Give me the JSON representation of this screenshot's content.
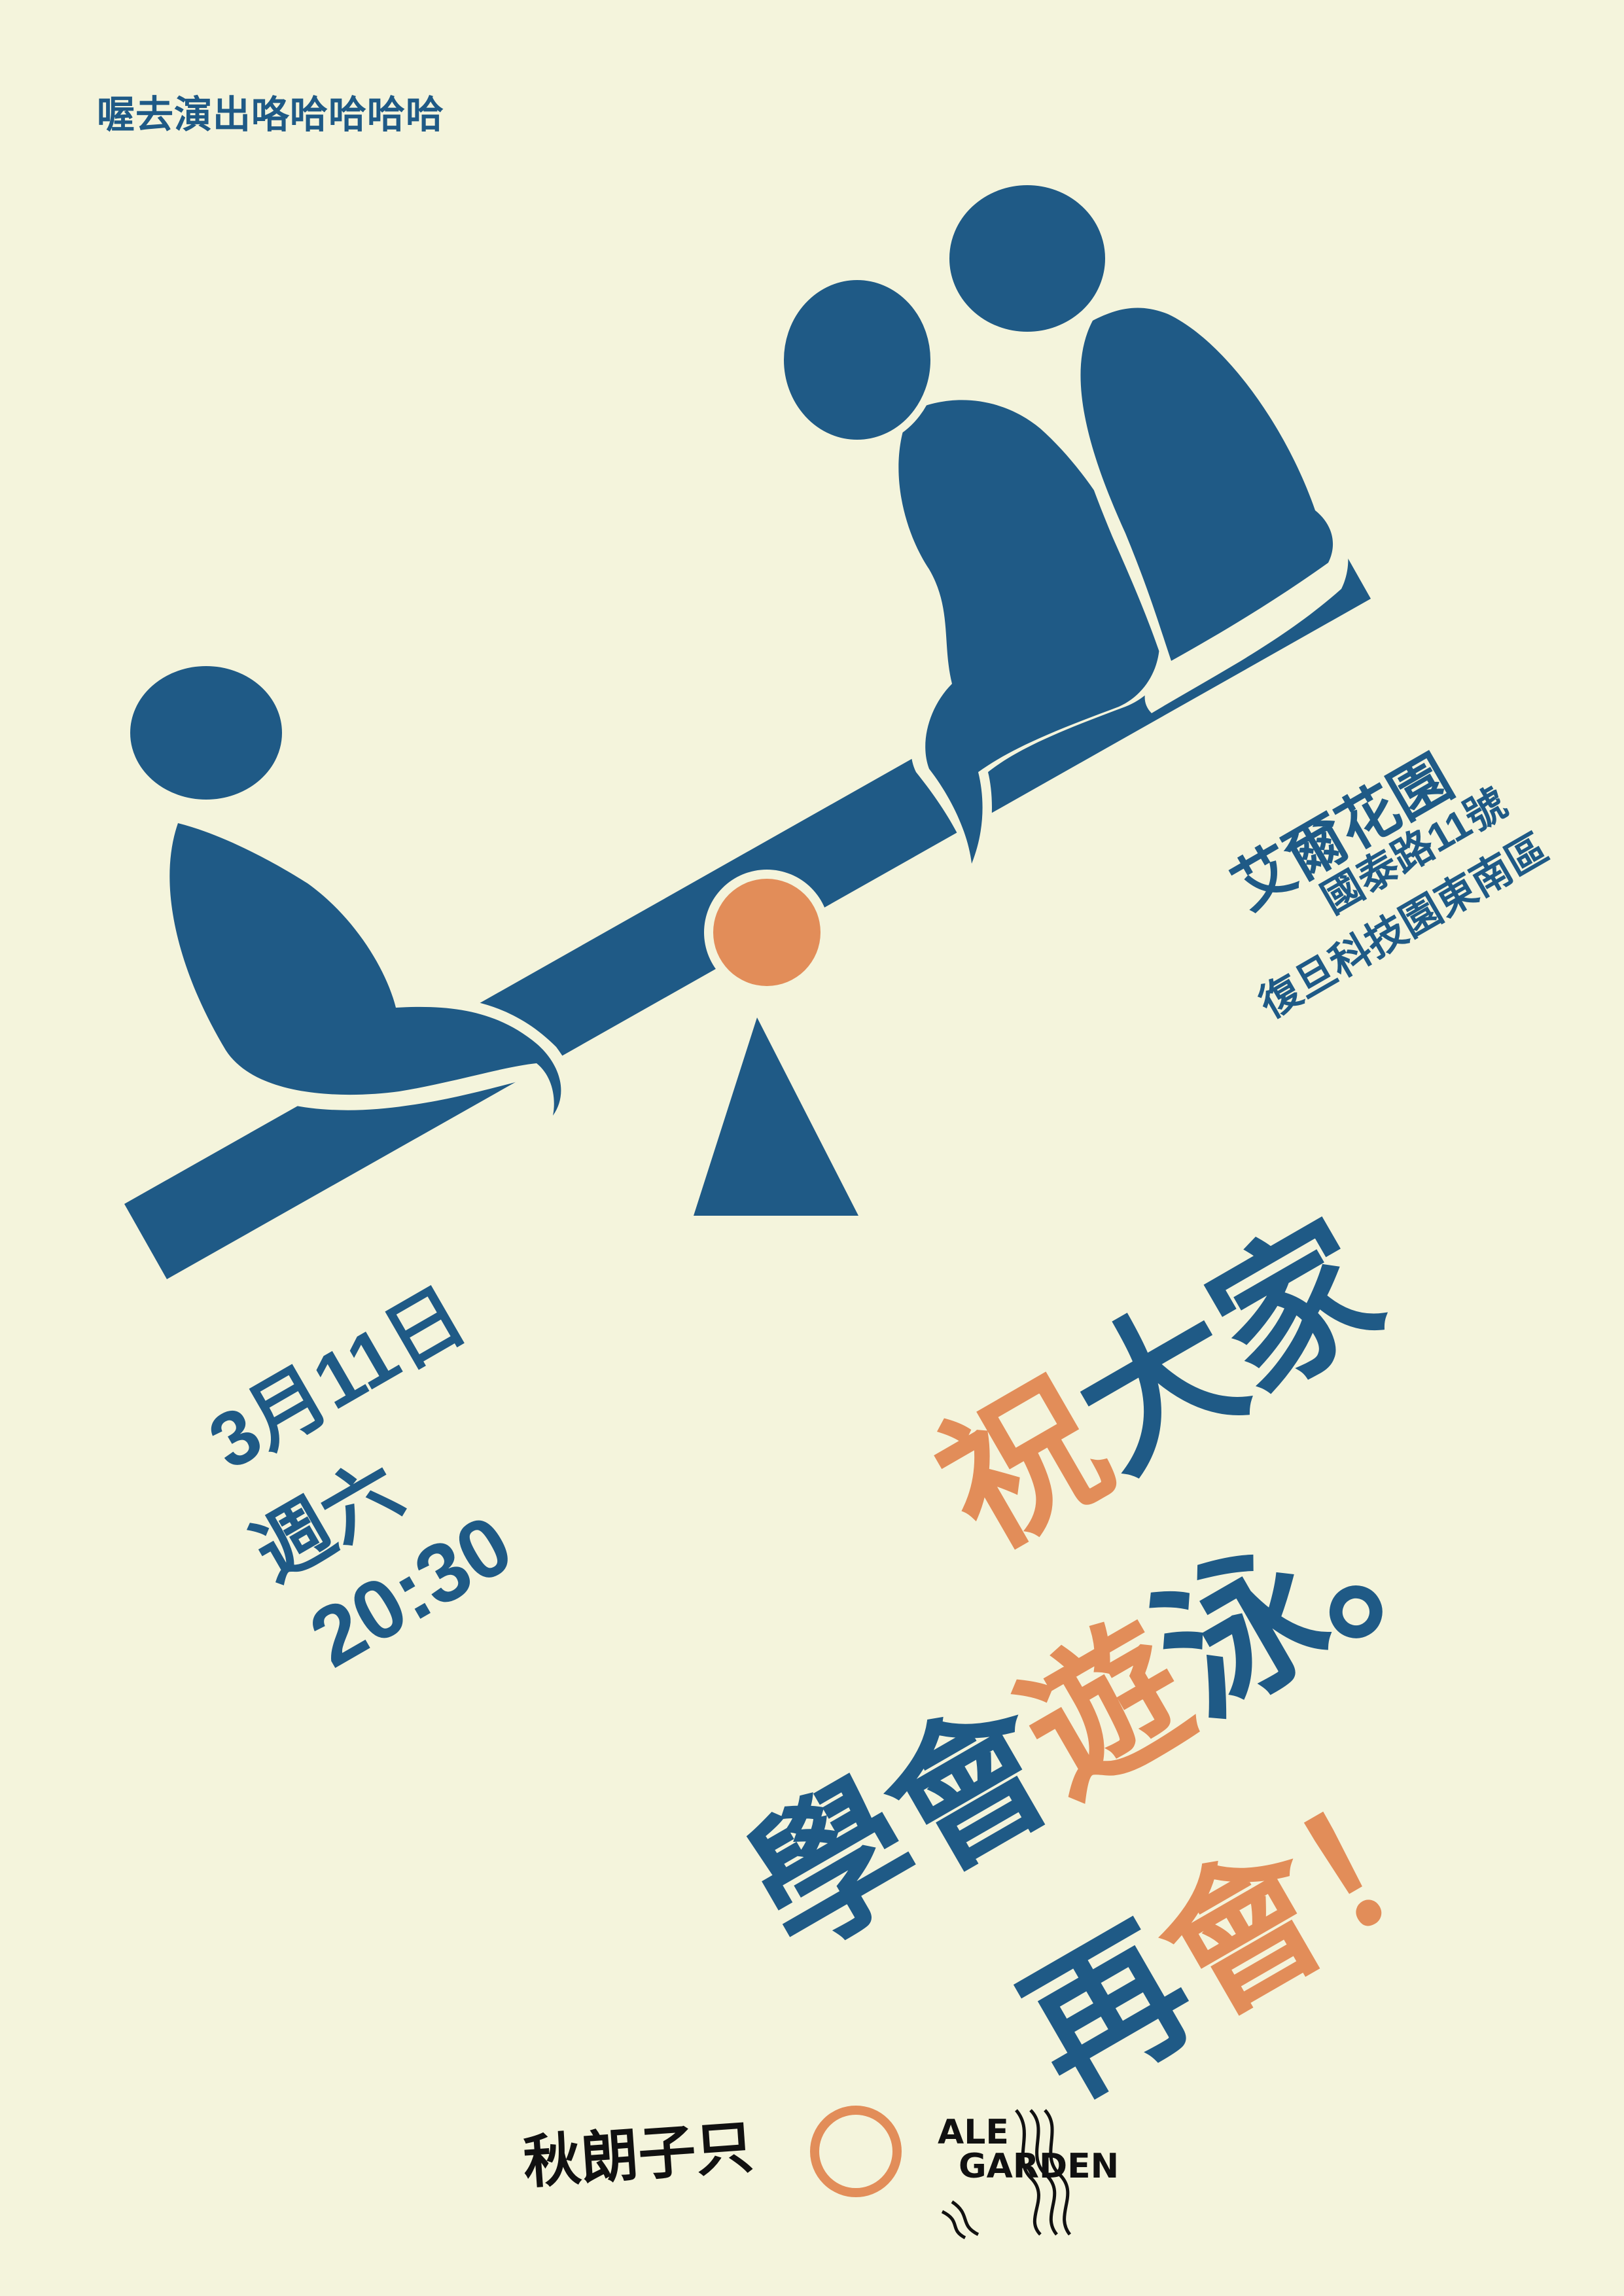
{
  "header": {
    "tagline": "喔去演出咯哈哈哈哈"
  },
  "venue": {
    "name": "艾爾花園",
    "address_line1": "國泰路11號",
    "address_line2": "復旦科技園東南區"
  },
  "event": {
    "date": "3月11日",
    "weekday": "週六",
    "time": "20:30"
  },
  "headline": {
    "line1": [
      {
        "text": "祝",
        "color": "orange"
      },
      {
        "text": "大家",
        "color": "blue"
      }
    ],
    "line2": [
      {
        "text": "學會",
        "color": "blue"
      },
      {
        "text": "遊",
        "color": "orange"
      },
      {
        "text": "泳。",
        "color": "blue"
      }
    ],
    "line3": [
      {
        "text": "再",
        "color": "blue"
      },
      {
        "text": "會！",
        "color": "orange"
      }
    ]
  },
  "logos": {
    "left_logo": "秋朗子只",
    "right_logo_line1": "ALE",
    "right_logo_line2": "GARDEN"
  },
  "colors": {
    "background": "#f4f4dc",
    "primary": "#1f5a86",
    "accent": "#e28d59"
  },
  "icons": [
    "seesaw-illustration",
    "pivot-circle",
    "logo-circle-icon"
  ]
}
